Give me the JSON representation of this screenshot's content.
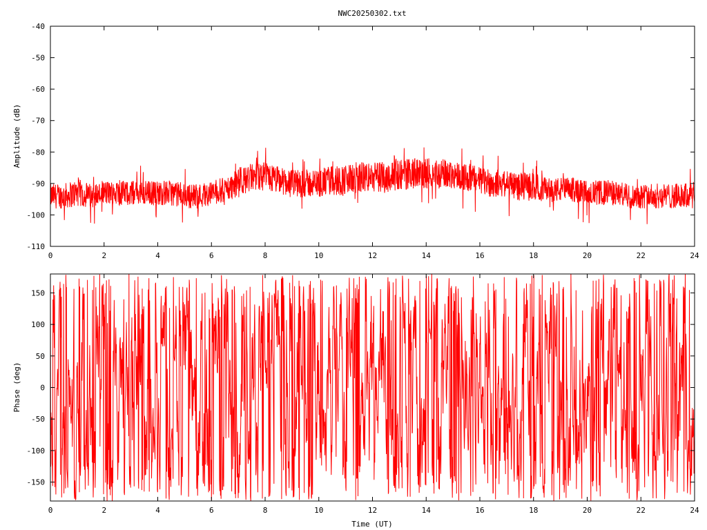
{
  "title": "NWC20250302.txt",
  "colors": {
    "series": "#ff0000",
    "axes": "#000000",
    "background": "#ffffff"
  },
  "chart_data": [
    {
      "type": "line",
      "title": "NWC20250302.txt",
      "xlabel": "",
      "ylabel": "Amplitude (dB)",
      "xlim": [
        0,
        24
      ],
      "ylim": [
        -110,
        -40
      ],
      "xticks": [
        "0",
        "2",
        "4",
        "6",
        "8",
        "10",
        "12",
        "14",
        "16",
        "18",
        "20",
        "22",
        "24"
      ],
      "yticks": [
        "-110",
        "-100",
        "-90",
        "-80",
        "-70",
        "-60",
        "-50",
        "-40"
      ],
      "grid": false,
      "legend": "none",
      "series": [
        {
          "x": [
            0,
            0.5,
            1,
            1.5,
            2,
            2.5,
            3,
            3.5,
            4,
            4.5,
            5,
            5.5,
            6,
            6.5,
            7,
            7.5,
            8,
            8.5,
            9,
            9.5,
            10,
            10.5,
            11,
            11.5,
            12,
            12.5,
            13,
            13.5,
            14,
            14.5,
            15,
            15.5,
            16,
            16.5,
            17,
            17.5,
            18,
            18.5,
            19,
            19.5,
            20,
            20.5,
            21,
            21.5,
            22,
            22.5,
            23,
            23.5,
            24
          ],
          "y": [
            -94,
            -94,
            -93,
            -94,
            -93,
            -93,
            -93,
            -93,
            -93,
            -93,
            -94,
            -94,
            -93,
            -92,
            -90,
            -88,
            -88,
            -89,
            -90,
            -90,
            -90,
            -89,
            -89,
            -88,
            -88,
            -88,
            -87,
            -87,
            -87,
            -87,
            -87,
            -88,
            -89,
            -90,
            -90,
            -91,
            -91,
            -92,
            -92,
            -92,
            -93,
            -93,
            -93,
            -94,
            -94,
            -94,
            -94,
            -94,
            -94
          ],
          "spread": [
            4,
            4,
            4.5,
            4,
            4,
            4,
            4,
            4,
            4,
            4,
            4,
            4,
            4,
            4,
            4.5,
            4.5,
            5,
            4.5,
            4.5,
            4.5,
            4.5,
            5,
            5,
            5,
            5,
            5,
            5,
            5,
            5,
            5,
            4.5,
            4.5,
            4.5,
            4.5,
            4.5,
            4.5,
            4.5,
            4,
            4,
            4,
            4,
            4,
            4,
            4,
            4,
            4,
            4,
            4,
            4.5
          ]
        }
      ]
    },
    {
      "type": "line",
      "title": "",
      "xlabel": "Time (UT)",
      "ylabel": "Phase (deg)",
      "xlim": [
        0,
        24
      ],
      "ylim": [
        -180,
        180
      ],
      "xticks": [
        "0",
        "2",
        "4",
        "6",
        "8",
        "10",
        "12",
        "14",
        "16",
        "18",
        "20",
        "22",
        "24"
      ],
      "yticks": [
        "-150",
        "-100",
        "-50",
        "0",
        "50",
        "100",
        "150"
      ],
      "grid": false,
      "legend": "none",
      "series": [
        {
          "range": [
            -180,
            180
          ]
        }
      ]
    }
  ]
}
